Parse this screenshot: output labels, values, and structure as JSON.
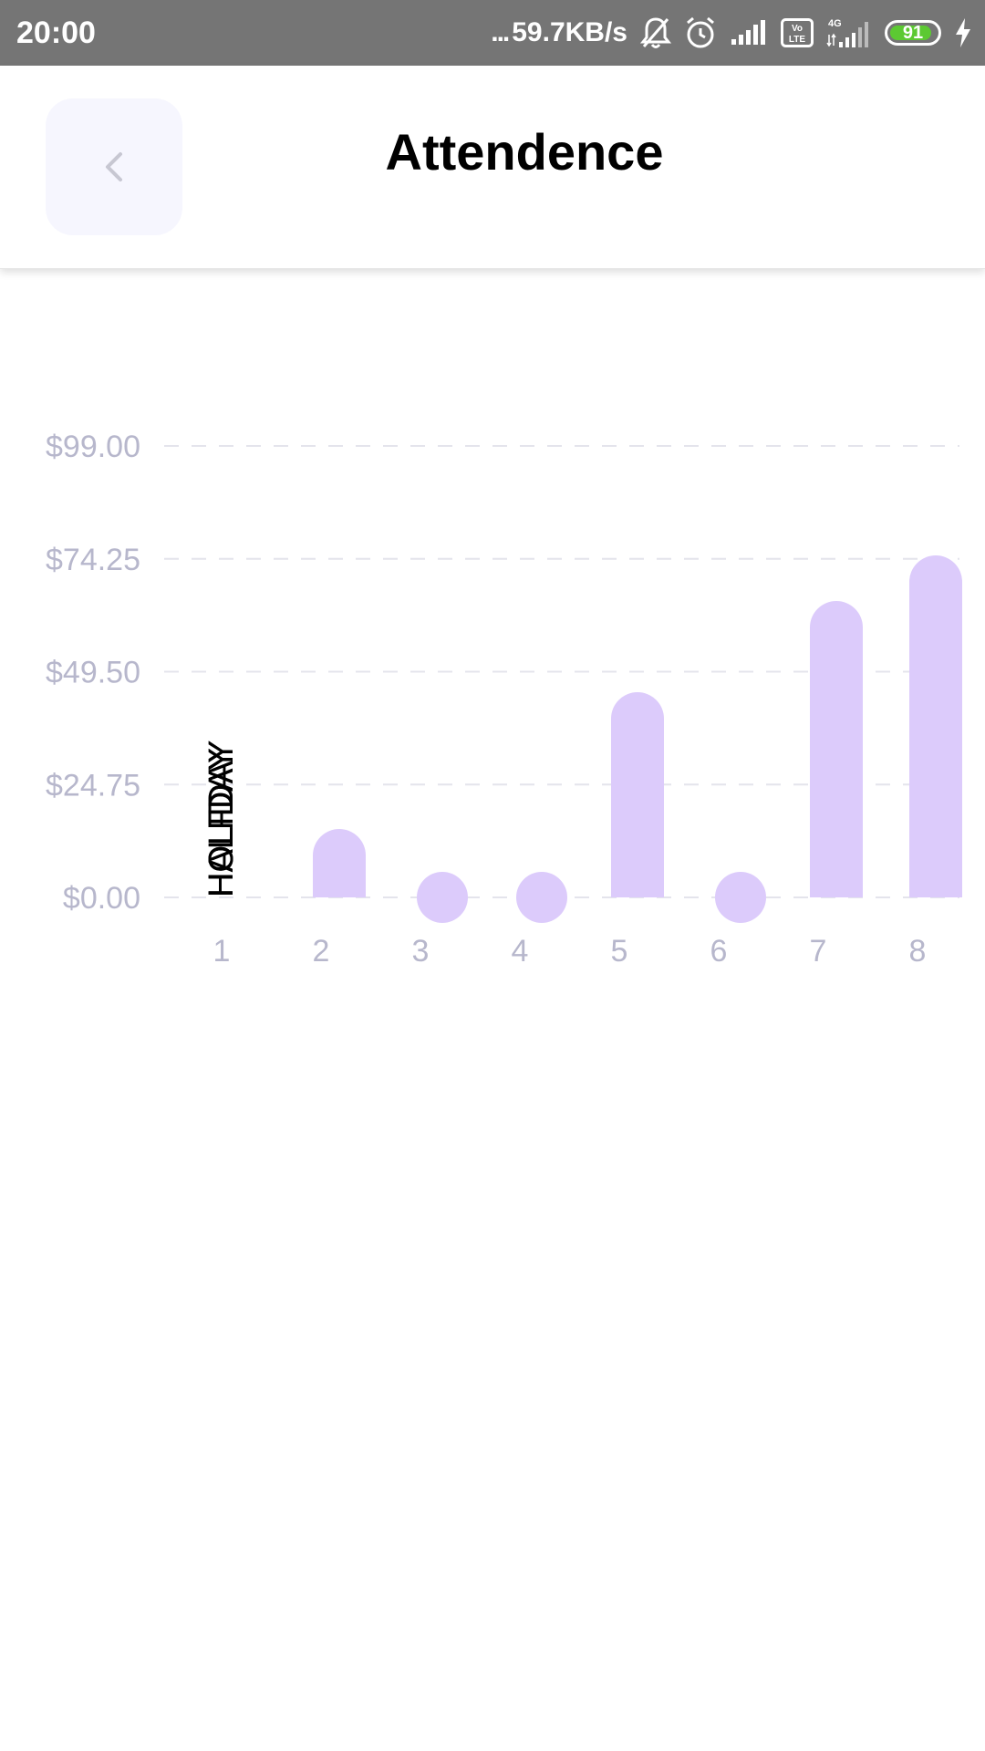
{
  "status_bar": {
    "time": "20:00",
    "net_speed": "59.7KB/s",
    "net_speed_prefix": "...",
    "battery_level": "91",
    "battery_fraction": 0.91,
    "network_type": "4G",
    "volte_label": "Vo LTE",
    "icons": [
      "mute-bell-icon",
      "alarm-icon",
      "signal-icon",
      "volte-icon",
      "signal-4g-icon",
      "battery-icon",
      "charging-icon"
    ]
  },
  "header": {
    "title": "Attendence",
    "back_icon": "chevron-left-icon"
  },
  "colors": {
    "bar": "#dccbfb",
    "axis_text": "#b7b7cc",
    "grid": "#e4e4ec",
    "header_button_bg": "#f6f6fe",
    "status_bar_bg": "#757575",
    "battery": "#5cc932"
  },
  "chart_data": {
    "type": "bar",
    "categories": [
      "1",
      "2",
      "3",
      "4",
      "5",
      "6",
      "7",
      "8"
    ],
    "values": [
      null,
      15,
      0,
      0,
      45,
      0,
      65,
      75
    ],
    "annotations": [
      {
        "category": "1",
        "text": "HOLIDAY"
      },
      {
        "category": "1",
        "text": "HALFDAY"
      },
      {
        "category": "1",
        "text": "HALFDAY"
      },
      {
        "category": "1",
        "text": "HOLIDAY"
      }
    ],
    "y_ticks": [
      "$0.00",
      "$24.75",
      "$49.50",
      "$74.25",
      "$99.00"
    ],
    "y_tick_values": [
      0,
      24.75,
      49.5,
      74.25,
      99
    ],
    "ylim": [
      0,
      99
    ],
    "grid": true,
    "grid_style": "dashed",
    "xlabel": "",
    "ylabel": ""
  }
}
